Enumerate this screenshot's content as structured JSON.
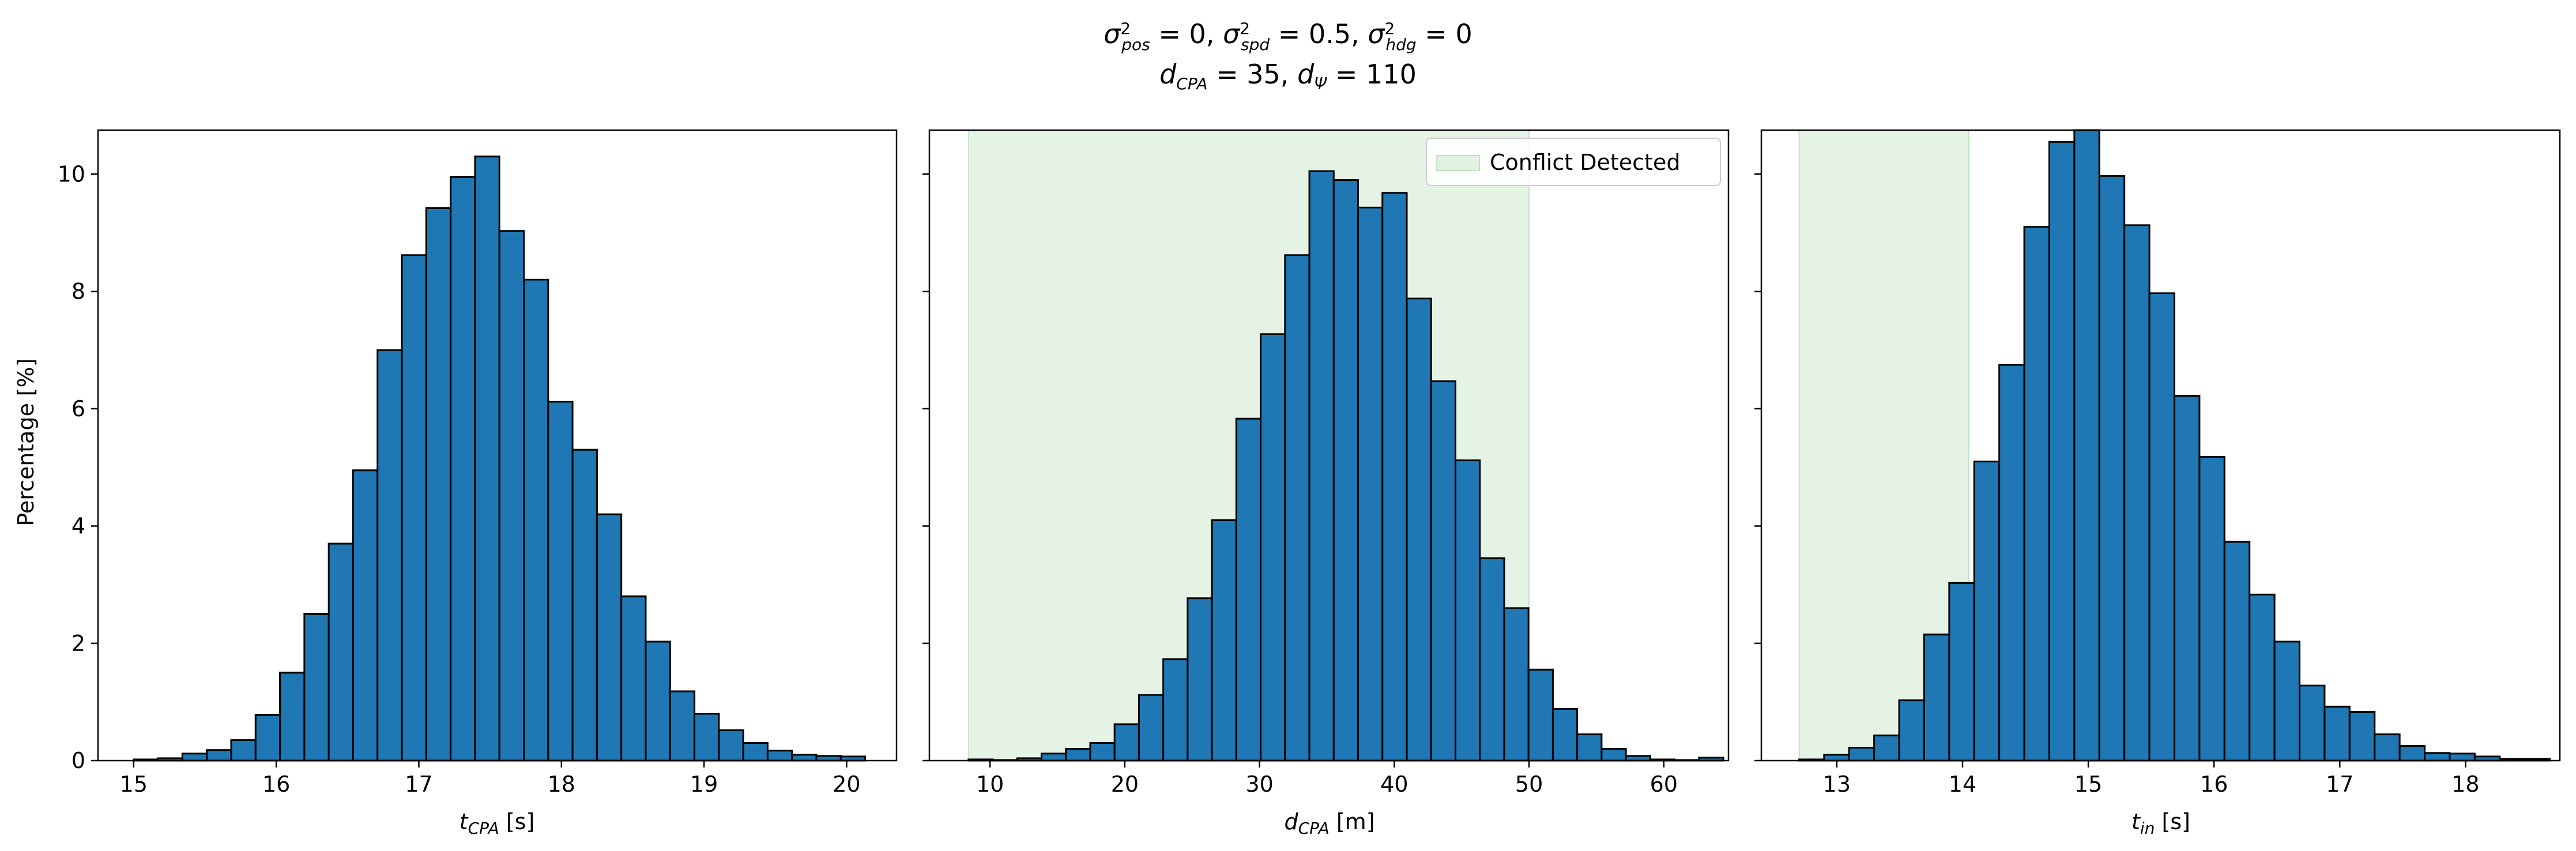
{
  "figure": {
    "title_line1": "σ²pos = 0, σ²spd = 0.5, σ²hdg = 0",
    "title_line2": "dCPA = 35, dΨ = 110"
  },
  "colors": {
    "bar_fill": "#1f77b4",
    "bar_edge": "#000000",
    "conflict_fill": "#2ca02c"
  },
  "chart_data": [
    {
      "type": "bar",
      "subtype": "histogram",
      "xlabel": "tCPA [s]",
      "ylabel": "Percentage [%]",
      "xlim": [
        14.75,
        20.35
      ],
      "ylim": [
        0,
        10.75
      ],
      "xticks": [
        15,
        16,
        17,
        18,
        19,
        20
      ],
      "yticks": [
        0,
        2,
        4,
        6,
        8,
        10
      ],
      "bin_start": 15.0,
      "bin_width": 0.171,
      "values": [
        0.02,
        0.04,
        0.12,
        0.18,
        0.35,
        0.78,
        1.5,
        2.5,
        3.7,
        4.95,
        7.0,
        8.62,
        9.42,
        9.95,
        10.3,
        9.03,
        8.2,
        6.12,
        5.3,
        4.2,
        2.8,
        2.03,
        1.18,
        0.8,
        0.52,
        0.3,
        0.17,
        0.1,
        0.08,
        0.07
      ]
    },
    {
      "type": "bar",
      "subtype": "histogram",
      "xlabel": "dCPA [m]",
      "xlim": [
        5.5,
        64.8
      ],
      "ylim": [
        0,
        10.75
      ],
      "xticks": [
        10,
        20,
        30,
        40,
        50,
        60
      ],
      "yticks": [
        0,
        2,
        4,
        6,
        8,
        10
      ],
      "bin_start": 8.4,
      "bin_width": 1.807,
      "values": [
        0.02,
        0.01,
        0.04,
        0.12,
        0.2,
        0.3,
        0.62,
        1.12,
        1.73,
        2.77,
        4.1,
        5.83,
        7.27,
        8.62,
        10.05,
        9.9,
        9.43,
        9.68,
        7.88,
        6.47,
        5.12,
        3.45,
        2.6,
        1.55,
        0.88,
        0.45,
        0.2,
        0.08,
        0.02,
        0.01,
        0.05
      ],
      "shaded_region": {
        "x0": 8.4,
        "x1": 50.0,
        "label": "Conflict Detected"
      },
      "legend": {
        "label": "Conflict Detected",
        "position": "upper right"
      }
    },
    {
      "type": "bar",
      "subtype": "histogram",
      "xlabel": "tin [s]",
      "xlim": [
        12.4,
        18.75
      ],
      "ylim": [
        0,
        10.75
      ],
      "xticks": [
        13,
        14,
        15,
        16,
        17,
        18
      ],
      "yticks": [
        0,
        2,
        4,
        6,
        8,
        10
      ],
      "bin_start": 12.7,
      "bin_width": 0.199,
      "values": [
        0.02,
        0.1,
        0.22,
        0.43,
        1.03,
        2.15,
        3.03,
        5.1,
        6.75,
        9.1,
        10.55,
        10.75,
        9.97,
        9.13,
        7.97,
        6.22,
        5.18,
        3.73,
        2.83,
        2.03,
        1.28,
        0.92,
        0.83,
        0.45,
        0.25,
        0.13,
        0.12,
        0.07,
        0.03,
        0.03
      ],
      "shaded_region": {
        "x0": 12.7,
        "x1": 14.05
      }
    }
  ]
}
